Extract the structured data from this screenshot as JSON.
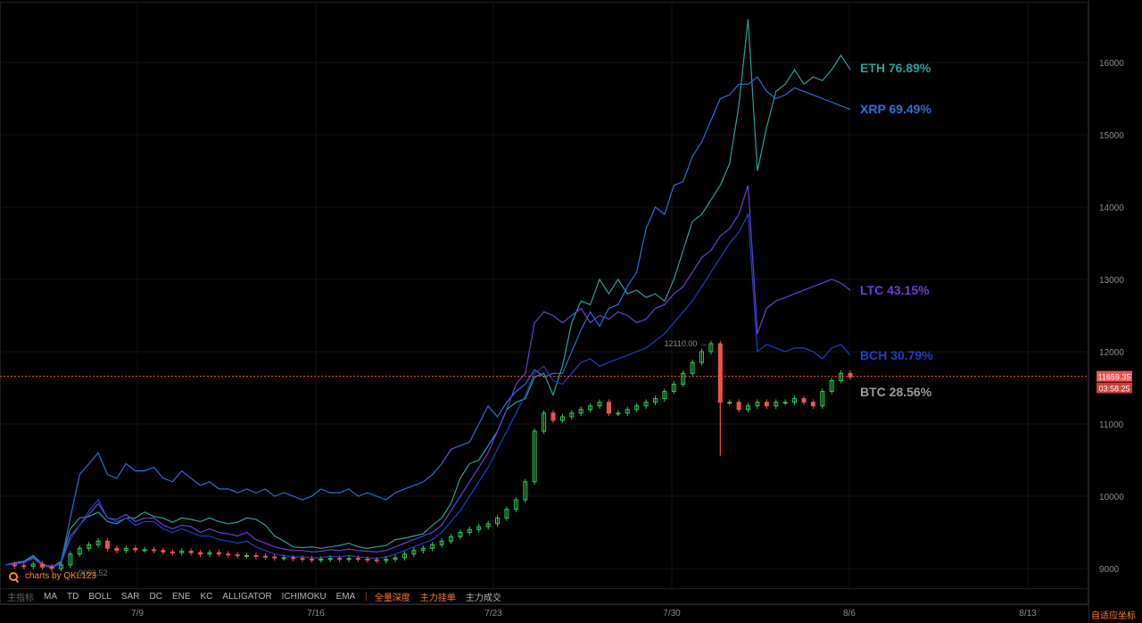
{
  "chart_data": {
    "type": "candlestick-comparison",
    "y_ticks": [
      9000,
      10000,
      11000,
      12000,
      13000,
      14000,
      15000,
      16000
    ],
    "ylim": [
      8800,
      16800
    ],
    "x_ticks": [
      "7/9",
      "7/16",
      "7/23",
      "7/30",
      "8/6",
      "8/13"
    ],
    "current_price": "11659.35",
    "countdown": "03:58:25",
    "annotations": {
      "high": "12110.00",
      "low": "9002.52"
    },
    "series": [
      {
        "name": "ETH",
        "change": "76.89%",
        "color": "#2aa198",
        "values": [
          9050,
          9080,
          9100,
          9180,
          9060,
          9020,
          9100,
          9550,
          9700,
          9720,
          9780,
          9650,
          9620,
          9700,
          9700,
          9780,
          9720,
          9700,
          9640,
          9700,
          9680,
          9650,
          9700,
          9650,
          9620,
          9640,
          9700,
          9680,
          9600,
          9450,
          9380,
          9300,
          9290,
          9300,
          9280,
          9300,
          9320,
          9350,
          9300,
          9280,
          9300,
          9320,
          9400,
          9420,
          9450,
          9480,
          9600,
          9700,
          9900,
          10250,
          10450,
          10500,
          10700,
          10900,
          11200,
          11300,
          11350,
          11650,
          11700,
          11400,
          11800,
          12400,
          12700,
          12650,
          13000,
          12800,
          13000,
          12800,
          12850,
          12750,
          12800,
          12700,
          13000,
          13400,
          13800,
          13900,
          14100,
          14300,
          14600,
          15400,
          16600,
          14500,
          15100,
          15600,
          15700,
          15900,
          15700,
          15800,
          15750,
          15900,
          16100,
          15900
        ]
      },
      {
        "name": "XRP",
        "change": "69.49%",
        "color": "#2e6fd8",
        "values": [
          9050,
          9060,
          9080,
          9150,
          9050,
          9030,
          9080,
          9700,
          10300,
          10450,
          10600,
          10300,
          10250,
          10450,
          10350,
          10350,
          10400,
          10250,
          10200,
          10350,
          10250,
          10150,
          10200,
          10100,
          10100,
          10050,
          10100,
          10050,
          10100,
          10000,
          10050,
          10000,
          9950,
          10000,
          10100,
          10050,
          10050,
          10100,
          10000,
          10050,
          10000,
          9950,
          10050,
          10100,
          10150,
          10200,
          10300,
          10450,
          10650,
          10700,
          10750,
          11000,
          11250,
          11100,
          11300,
          11450,
          11550,
          11750,
          11650,
          11700,
          11700,
          12000,
          12300,
          12550,
          12350,
          12600,
          12650,
          12900,
          13100,
          13700,
          14000,
          13900,
          14300,
          14350,
          14700,
          14900,
          15200,
          15500,
          15550,
          15700,
          15700,
          15800,
          15600,
          15500,
          15550,
          15650,
          15600,
          15550,
          15500,
          15450,
          15400,
          15350
        ]
      },
      {
        "name": "LTC",
        "change": "43.15%",
        "color": "#6a3fd6",
        "values": [
          9050,
          9070,
          9090,
          9160,
          9050,
          9020,
          9080,
          9450,
          9600,
          9750,
          9900,
          9700,
          9680,
          9750,
          9650,
          9700,
          9700,
          9600,
          9550,
          9600,
          9580,
          9500,
          9550,
          9500,
          9480,
          9450,
          9500,
          9400,
          9350,
          9300,
          9270,
          9250,
          9250,
          9230,
          9240,
          9260,
          9250,
          9270,
          9250,
          9240,
          9230,
          9250,
          9300,
          9350,
          9400,
          9450,
          9500,
          9600,
          9800,
          10000,
          10200,
          10400,
          10600,
          10900,
          11200,
          11550,
          11700,
          12400,
          12550,
          12500,
          12400,
          12500,
          12600,
          12400,
          12500,
          12450,
          12550,
          12500,
          12400,
          12450,
          12600,
          12650,
          12800,
          12900,
          13100,
          13300,
          13400,
          13600,
          13700,
          13900,
          14300,
          12250,
          12600,
          12700,
          12750,
          12800,
          12850,
          12900,
          12950,
          13000,
          12950,
          12850
        ]
      },
      {
        "name": "BCH",
        "change": "30.79%",
        "color": "#1f3fc8",
        "values": [
          9050,
          9060,
          9080,
          9140,
          9040,
          9010,
          9070,
          9400,
          9600,
          9800,
          9950,
          9700,
          9650,
          9700,
          9600,
          9650,
          9650,
          9550,
          9500,
          9550,
          9500,
          9450,
          9450,
          9400,
          9380,
          9350,
          9380,
          9300,
          9250,
          9200,
          9180,
          9160,
          9160,
          9150,
          9150,
          9170,
          9160,
          9180,
          9160,
          9150,
          9140,
          9160,
          9200,
          9250,
          9300,
          9350,
          9400,
          9500,
          9650,
          9800,
          10000,
          10200,
          10400,
          10650,
          10900,
          11150,
          11400,
          11700,
          11800,
          11600,
          11550,
          11700,
          11850,
          11900,
          11800,
          11850,
          11900,
          11950,
          12000,
          12050,
          12150,
          12250,
          12400,
          12550,
          12700,
          12900,
          13100,
          13300,
          13500,
          13650,
          13900,
          12000,
          12100,
          12050,
          12000,
          12050,
          12050,
          12000,
          11900,
          12050,
          12100,
          11950
        ]
      },
      {
        "name": "BTC",
        "change": "28.56%",
        "color": "#8a8a8a",
        "values": [
          9050,
          9040,
          9030,
          9060,
          9020,
          9000,
          9050,
          9200,
          9280,
          9330,
          9380,
          9280,
          9250,
          9280,
          9260,
          9260,
          9250,
          9230,
          9220,
          9240,
          9220,
          9200,
          9220,
          9200,
          9190,
          9180,
          9180,
          9170,
          9160,
          9150,
          9150,
          9140,
          9130,
          9120,
          9130,
          9140,
          9130,
          9140,
          9130,
          9120,
          9110,
          9130,
          9150,
          9200,
          9250,
          9280,
          9330,
          9380,
          9440,
          9500,
          9540,
          9580,
          9620,
          9700,
          9820,
          9950,
          10200,
          10900,
          11150,
          11050,
          11100,
          11150,
          11200,
          11250,
          11300,
          11150,
          11150,
          11200,
          11250,
          11300,
          11350,
          11450,
          11550,
          11700,
          11850,
          12000,
          12110,
          11300,
          11300,
          11200,
          11250,
          11300,
          11250,
          11300,
          11300,
          11350,
          11300,
          11250,
          11450,
          11600,
          11700,
          11650
        ]
      }
    ]
  },
  "toolbar": {
    "label": "主指标",
    "indicators": [
      "MA",
      "TD",
      "BOLL",
      "SAR",
      "DC",
      "ENE",
      "KC",
      "ALLIGATOR",
      "ICHIMOKU",
      "EMA"
    ],
    "separator": "|",
    "overlay_1": "全量深度",
    "overlay_2": "主力挂单",
    "overlay_3": "主力成交"
  },
  "watermark": "charts by QKL123",
  "autofit_label": "自适应坐标",
  "colors": {
    "up": "#34c759",
    "down": "#ef5350",
    "price_line": "#ef5350",
    "background": "#000000"
  }
}
